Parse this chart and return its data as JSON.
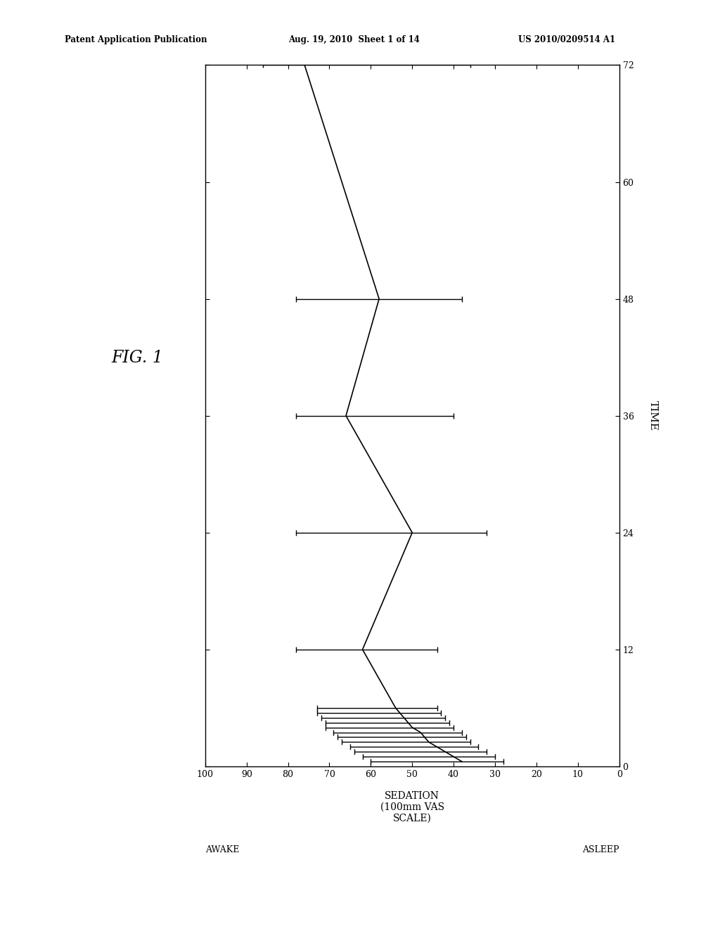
{
  "title": "FIG. 1",
  "xlabel": "SEDATION\n(100mm VAS\nSCALE)",
  "ylabel": "TIME",
  "awake_label": "AWAKE",
  "asleep_label": "ASLEEP",
  "patent_header_left": "Patent Application Publication",
  "patent_header_mid": "Aug. 19, 2010  Sheet 1 of 14",
  "patent_header_right": "US 2010/0209514 A1",
  "x_ticks": [
    100,
    90,
    80,
    70,
    60,
    50,
    40,
    30,
    20,
    10,
    0
  ],
  "y_ticks": [
    0,
    12,
    24,
    36,
    48,
    60,
    72
  ],
  "data_points": [
    {
      "time": 0.5,
      "sedation": 38,
      "err_low": 10,
      "err_high": 22
    },
    {
      "time": 1.0,
      "sedation": 40,
      "err_low": 10,
      "err_high": 22
    },
    {
      "time": 1.5,
      "sedation": 42,
      "err_low": 10,
      "err_high": 22
    },
    {
      "time": 2.0,
      "sedation": 44,
      "err_low": 10,
      "err_high": 21
    },
    {
      "time": 2.5,
      "sedation": 46,
      "err_low": 10,
      "err_high": 21
    },
    {
      "time": 3.0,
      "sedation": 47,
      "err_low": 10,
      "err_high": 21
    },
    {
      "time": 3.5,
      "sedation": 48,
      "err_low": 10,
      "err_high": 21
    },
    {
      "time": 4.0,
      "sedation": 50,
      "err_low": 10,
      "err_high": 21
    },
    {
      "time": 4.5,
      "sedation": 51,
      "err_low": 10,
      "err_high": 20
    },
    {
      "time": 5.0,
      "sedation": 52,
      "err_low": 10,
      "err_high": 20
    },
    {
      "time": 5.5,
      "sedation": 53,
      "err_low": 10,
      "err_high": 20
    },
    {
      "time": 6.0,
      "sedation": 54,
      "err_low": 10,
      "err_high": 19
    },
    {
      "time": 12,
      "sedation": 62,
      "err_low": 18,
      "err_high": 16
    },
    {
      "time": 24,
      "sedation": 50,
      "err_low": 18,
      "err_high": 28
    },
    {
      "time": 36,
      "sedation": 66,
      "err_low": 26,
      "err_high": 12
    },
    {
      "time": 48,
      "sedation": 58,
      "err_low": 20,
      "err_high": 20
    },
    {
      "time": 72,
      "sedation": 76,
      "err_low": 40,
      "err_high": 10
    }
  ],
  "line_color": "#000000",
  "line_width": 1.2,
  "background_color": "#ffffff"
}
